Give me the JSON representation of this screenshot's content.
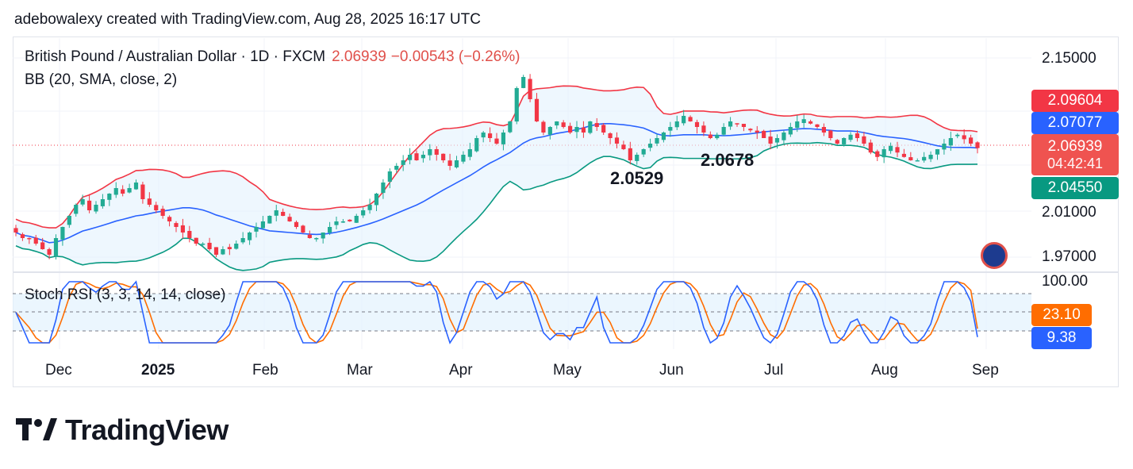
{
  "credit": "adebowalexy created with TradingView.com, Aug 28, 2025 16:17 UTC",
  "legend": {
    "symbol": "British Pound / Australian Dollar · 1D · FXCM",
    "price": "2.06939",
    "change": "−0.00543 (−0.26%)",
    "bb": "BB (20, SMA, close, 2)",
    "stoch": "Stoch RSI (3, 3, 14, 14, close)"
  },
  "colors": {
    "up": "#22ab94",
    "down": "#f23645",
    "basis": "#2962ff",
    "upper": "#f23645",
    "lower": "#089981",
    "k_line": "#2962ff",
    "d_line": "#ff6d00",
    "band_fill": "#e3f2fd"
  },
  "tags": {
    "upper": "2.09604",
    "basis": "2.07077",
    "price": "2.06939",
    "countdown": "04:42:41",
    "lower": "2.04550",
    "d_val": "23.10",
    "k_val": "9.38"
  },
  "annotations": {
    "low1": "2.0529",
    "low2": "2.0678"
  },
  "logo_text": "TradingView",
  "chart_data": [
    {
      "type": "candlestick",
      "title": "British Pound / Australian Dollar · 1D · FXCM",
      "y_ticks": [
        "2.15000",
        "2.01000",
        "1.97000"
      ],
      "x_ticks": [
        "Dec",
        "2025",
        "Feb",
        "Mar",
        "Apr",
        "May",
        "Jun",
        "Jul",
        "Aug",
        "Sep"
      ],
      "ylim": [
        1.955,
        2.165
      ],
      "last_close": 2.06939,
      "close_path": [
        1.99,
        1.985,
        1.985,
        1.98,
        1.975,
        1.97,
        1.985,
        1.995,
        2.005,
        2.015,
        2.02,
        2.01,
        2.015,
        2.02,
        2.025,
        2.03,
        2.025,
        2.03,
        2.035,
        2.02,
        2.015,
        2.01,
        2.005,
        2.0,
        1.995,
        1.99,
        1.985,
        1.98,
        1.98,
        1.975,
        1.97,
        1.975,
        1.975,
        1.98,
        1.985,
        1.99,
        1.995,
        2.0,
        2.005,
        2.01,
        2.005,
        2.0,
        1.995,
        1.99,
        1.985,
        1.985,
        1.99,
        1.995,
        2.0,
        2.0,
        2.0,
        2.005,
        2.01,
        2.015,
        2.025,
        2.035,
        2.045,
        2.05,
        2.055,
        2.06,
        2.055,
        2.06,
        2.065,
        2.06,
        2.055,
        2.05,
        2.055,
        2.06,
        2.065,
        2.075,
        2.08,
        2.075,
        2.07,
        2.08,
        2.09,
        2.12,
        2.13,
        2.11,
        2.09,
        2.08,
        2.085,
        2.09,
        2.085,
        2.08,
        2.085,
        2.08,
        2.09,
        2.085,
        2.08,
        2.075,
        2.07,
        2.065,
        2.055,
        2.06,
        2.065,
        2.07,
        2.075,
        2.08,
        2.085,
        2.09,
        2.095,
        2.09,
        2.085,
        2.08,
        2.075,
        2.078,
        2.085,
        2.09,
        2.088,
        2.085,
        2.082,
        2.08,
        2.075,
        2.07,
        2.075,
        2.08,
        2.085,
        2.09,
        2.092,
        2.088,
        2.085,
        2.08,
        2.075,
        2.07,
        2.075,
        2.078,
        2.075,
        2.07,
        2.062,
        2.058,
        2.065,
        2.068,
        2.062,
        2.058,
        2.055,
        2.055,
        2.058,
        2.06,
        2.065,
        2.07,
        2.075,
        2.078,
        2.074,
        2.07,
        2.066
      ]
    },
    {
      "type": "line",
      "title": "Stoch RSI (3, 3, 14, 14, close)",
      "y_ticks": [
        "100.00"
      ],
      "ylim": [
        0,
        100
      ],
      "series": [
        {
          "name": "K",
          "last": 9.38
        },
        {
          "name": "D",
          "last": 23.1
        }
      ]
    }
  ]
}
